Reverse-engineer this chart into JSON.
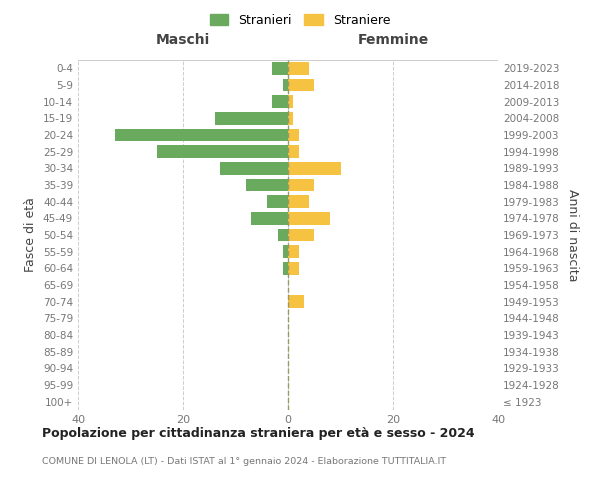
{
  "age_groups": [
    "100+",
    "95-99",
    "90-94",
    "85-89",
    "80-84",
    "75-79",
    "70-74",
    "65-69",
    "60-64",
    "55-59",
    "50-54",
    "45-49",
    "40-44",
    "35-39",
    "30-34",
    "25-29",
    "20-24",
    "15-19",
    "10-14",
    "5-9",
    "0-4"
  ],
  "birth_years": [
    "≤ 1923",
    "1924-1928",
    "1929-1933",
    "1934-1938",
    "1939-1943",
    "1944-1948",
    "1949-1953",
    "1954-1958",
    "1959-1963",
    "1964-1968",
    "1969-1973",
    "1974-1978",
    "1979-1983",
    "1984-1988",
    "1989-1993",
    "1994-1998",
    "1999-2003",
    "2004-2008",
    "2009-2013",
    "2014-2018",
    "2019-2023"
  ],
  "males": [
    0,
    0,
    0,
    0,
    0,
    0,
    0,
    0,
    1,
    1,
    2,
    7,
    4,
    8,
    13,
    25,
    33,
    14,
    3,
    1,
    3
  ],
  "females": [
    0,
    0,
    0,
    0,
    0,
    0,
    3,
    0,
    2,
    2,
    5,
    8,
    4,
    5,
    10,
    2,
    2,
    1,
    1,
    5,
    4
  ],
  "male_color": "#6aaa5e",
  "female_color": "#f5c242",
  "male_label": "Stranieri",
  "female_label": "Straniere",
  "title_main": "Popolazione per cittadinanza straniera per età e sesso - 2024",
  "title_sub": "COMUNE DI LENOLA (LT) - Dati ISTAT al 1° gennaio 2024 - Elaborazione TUTTITALIA.IT",
  "xlabel_left": "Maschi",
  "xlabel_right": "Femmine",
  "ylabel_left": "Fasce di età",
  "ylabel_right": "Anni di nascita",
  "xlim": 40,
  "background_color": "#ffffff",
  "grid_color": "#cccccc",
  "text_color": "#777777",
  "axis_label_color": "#444444"
}
